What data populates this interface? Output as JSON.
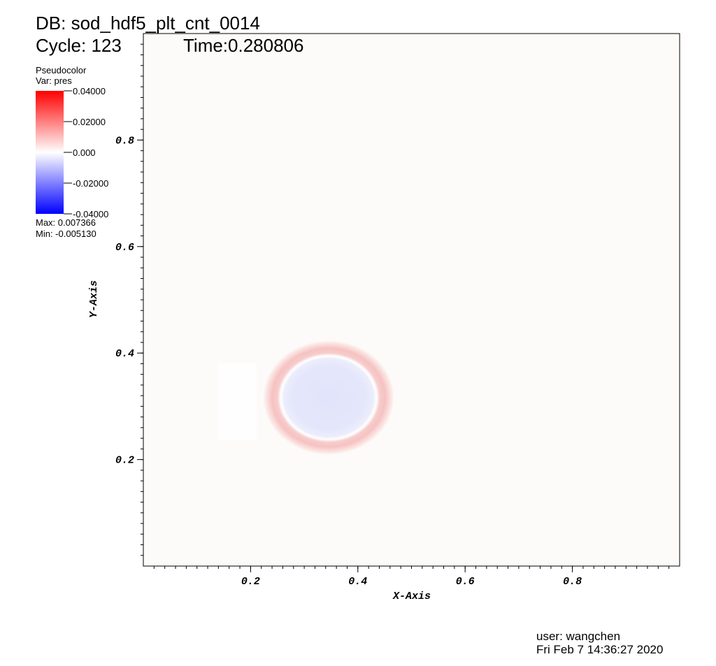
{
  "chart_data": {
    "type": "pseudocolor",
    "title": "DB: sod_hdf5_plt_cnt_0014",
    "cycle": "Cycle: 123",
    "time": "Time:0.280806",
    "x_label": "X-Axis",
    "y_label": "Y-Axis",
    "xlim": [
      0,
      1
    ],
    "ylim": [
      0,
      1
    ],
    "xticks": [
      0.2,
      0.4,
      0.6,
      0.8
    ],
    "yticks": [
      0.2,
      0.4,
      0.6,
      0.8
    ],
    "legend": {
      "title": "Pseudocolor",
      "variable": "Var: pres",
      "clim": [
        -0.04,
        0.04
      ],
      "high_color": "#ff0000",
      "low_color": "#0000ff",
      "ticks": [
        {
          "value": 0.04,
          "label": "0.04000"
        },
        {
          "value": 0.02,
          "label": "0.02000"
        },
        {
          "value": 0,
          "label": "0.000"
        },
        {
          "value": -0.02,
          "label": "-0.02000"
        },
        {
          "value": -0.04,
          "label": "-0.04000"
        }
      ],
      "max": "Max:  0.007366",
      "min": "Min: -0.005130"
    },
    "user": "user: wangchen",
    "date": "Fri Feb  7 14:36:27 2020"
  }
}
